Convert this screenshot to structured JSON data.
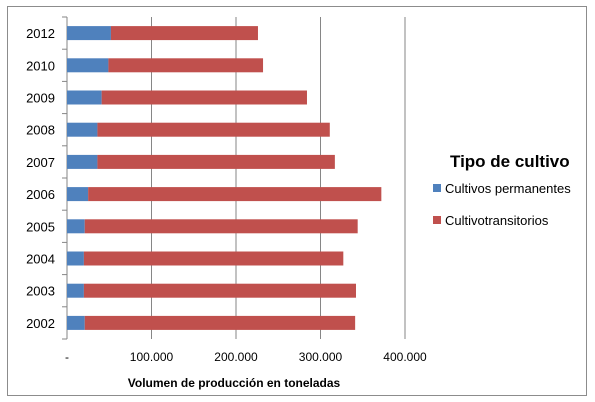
{
  "chart_data": {
    "type": "bar",
    "orientation": "horizontal",
    "stacked": true,
    "categories": [
      "2012",
      "2010",
      "2009",
      "2008",
      "2007",
      "2006",
      "2005",
      "2004",
      "2003",
      "2002"
    ],
    "series": [
      {
        "name": "Cultivos permanentes",
        "color": "#4f81bd",
        "values": [
          52000,
          49000,
          41000,
          36000,
          36000,
          25000,
          21000,
          20000,
          20000,
          21000
        ]
      },
      {
        "name": "Cultivotransitorios",
        "color": "#c0504d",
        "values": [
          174000,
          183000,
          243000,
          275000,
          281000,
          347000,
          323000,
          307000,
          322000,
          320000
        ]
      }
    ],
    "x_ticks": [
      "-",
      "100.000",
      "200.000",
      "300.000",
      "400.000"
    ],
    "xlim": [
      0,
      400000
    ],
    "xlabel": "Volumen de producción en toneladas",
    "legend": {
      "title": "Tipo de cultivo",
      "position": "right"
    },
    "grid": {
      "vertical": true,
      "color": "#868686"
    }
  }
}
